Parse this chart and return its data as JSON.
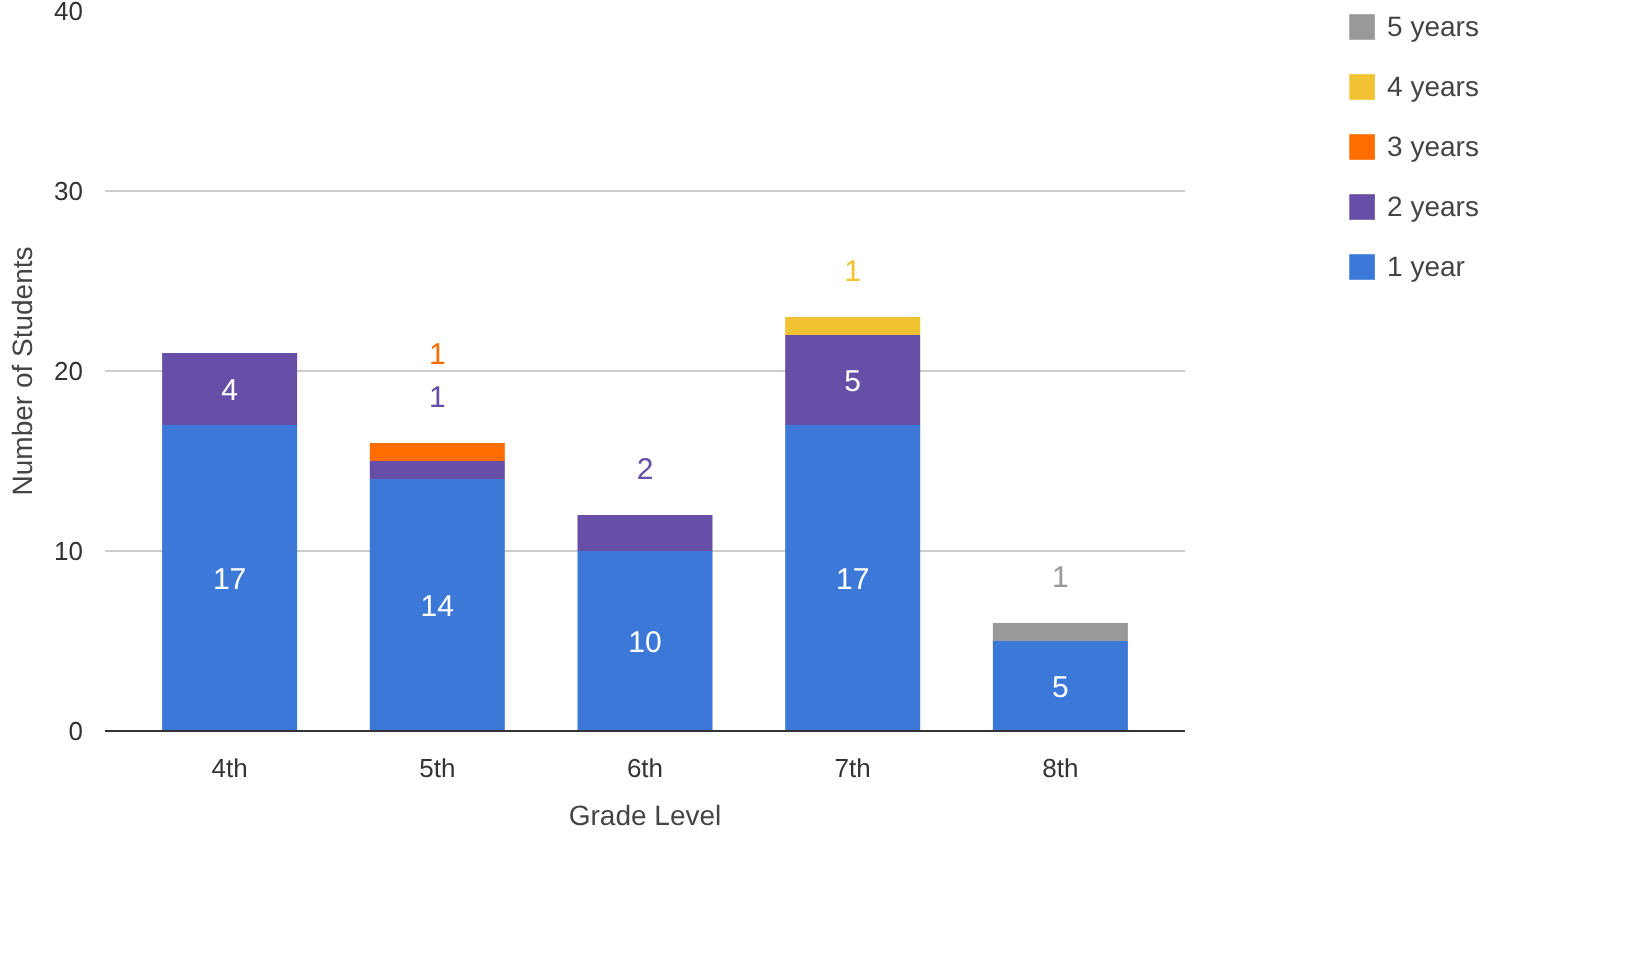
{
  "chart_data": {
    "type": "bar",
    "stacked": true,
    "xlabel": "Grade Level",
    "ylabel": "Number of Students",
    "categories": [
      "4th",
      "5th",
      "6th",
      "7th",
      "8th"
    ],
    "series": [
      {
        "name": "1 year",
        "color": "#3c78d8",
        "values": [
          17,
          14,
          10,
          17,
          5
        ],
        "value_labels": [
          "17",
          "14",
          "10",
          "17",
          "5"
        ]
      },
      {
        "name": "2 years",
        "color": "#674ea7",
        "values": [
          4,
          1,
          2,
          5,
          null
        ],
        "value_labels": [
          "4",
          "1",
          "2",
          "5",
          null
        ]
      },
      {
        "name": "3 years",
        "color": "#ff6d01",
        "values": [
          null,
          1,
          null,
          null,
          null
        ],
        "value_labels": [
          null,
          "1",
          null,
          null,
          null
        ]
      },
      {
        "name": "4 years",
        "color": "#f1c232",
        "values": [
          null,
          null,
          null,
          1,
          null
        ],
        "value_labels": [
          null,
          null,
          null,
          "1",
          null
        ]
      },
      {
        "name": "5 years",
        "color": "#999999",
        "values": [
          null,
          null,
          null,
          null,
          1
        ],
        "value_labels": [
          null,
          null,
          null,
          null,
          "1"
        ]
      }
    ],
    "ylim": [
      0,
      40
    ],
    "yticks": [
      0,
      10,
      20,
      30,
      40
    ],
    "grid": "y",
    "legend": "right"
  }
}
